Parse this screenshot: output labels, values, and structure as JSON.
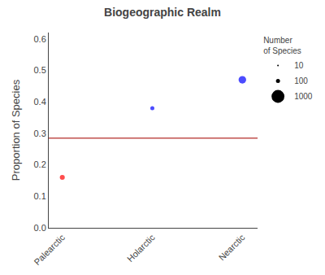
{
  "chart_data": {
    "type": "scatter",
    "title": "Biogeographic Realm",
    "ylabel": "Proportion of Species",
    "categories": [
      "Palearctic",
      "Holarctic",
      "Nearctic"
    ],
    "values": [
      0.16,
      0.38,
      0.47
    ],
    "colors": [
      "red",
      "blue",
      "blue"
    ],
    "sizes": [
      150,
      100,
      350
    ],
    "size_legend": {
      "title": "Number\nof Species",
      "values": [
        10,
        100,
        1000
      ]
    },
    "hline": {
      "y": 0.285,
      "color": "#c0504d"
    },
    "ylim": [
      0.0,
      0.62
    ],
    "yticks": [
      {
        "value": 0,
        "label": "0.0"
      },
      0.1,
      0.2,
      0.3,
      0.4,
      0.5,
      0.6
    ],
    "grid": false,
    "legend": "right"
  }
}
